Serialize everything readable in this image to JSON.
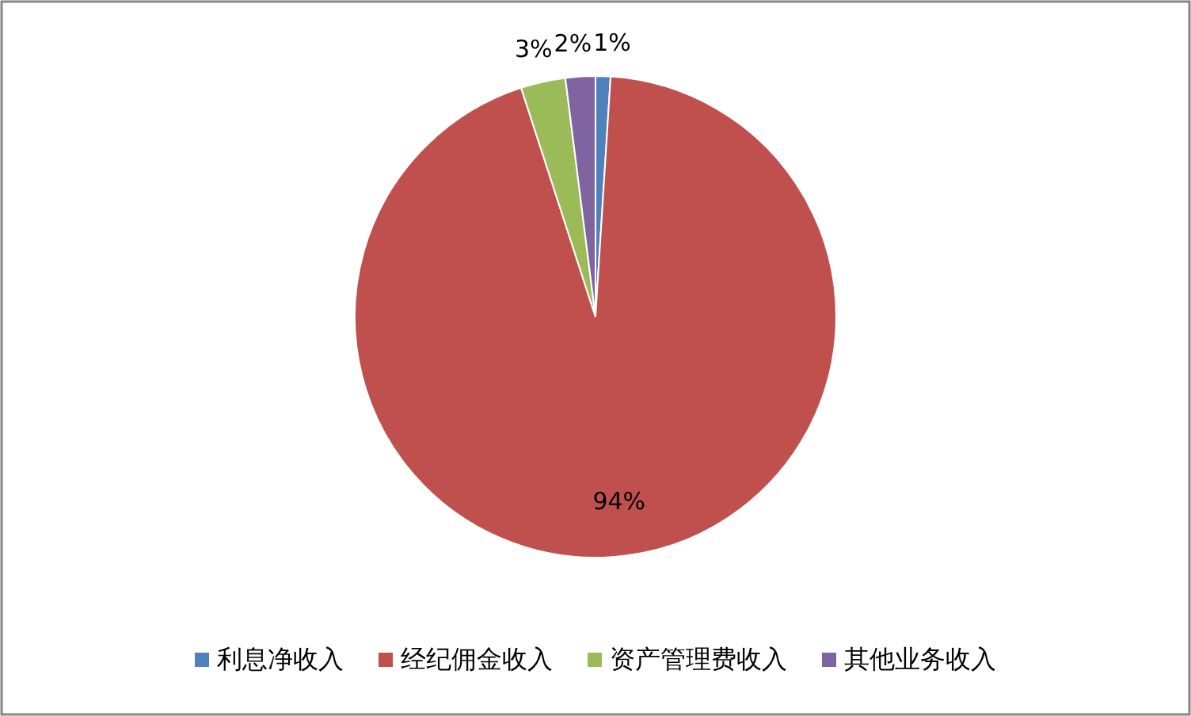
{
  "chart_data": {
    "type": "pie",
    "categories": [
      "利息净收入",
      "经纪佣金收入",
      "资产管理费收入",
      "其他业务收入"
    ],
    "values": [
      1,
      94,
      3,
      2
    ],
    "colors": [
      "#4f81bd",
      "#c0504d",
      "#9bbb59",
      "#8064a2"
    ],
    "value_labels": [
      "1%",
      "94%",
      "3%",
      "2%"
    ],
    "legend": "bottom"
  }
}
